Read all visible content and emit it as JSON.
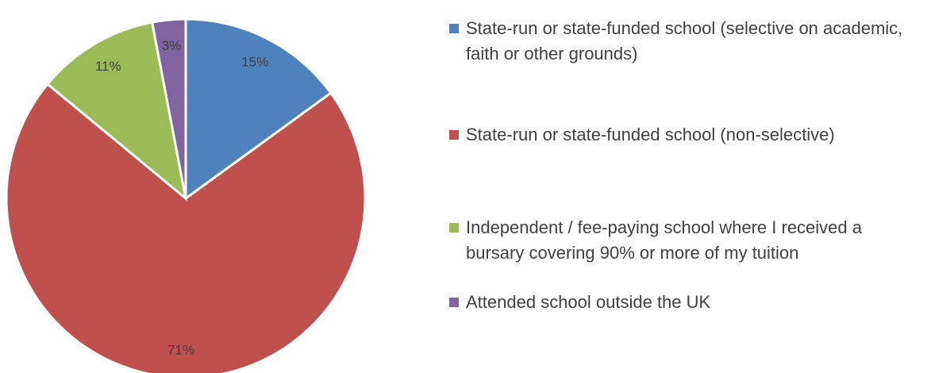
{
  "chart_data": {
    "type": "pie",
    "categories": [
      "State-run or state-funded school (selective on academic, faith or other grounds)",
      "State-run or state-funded school (non-selective)",
      "Independent / fee-paying school where I received a bursary covering 90% or more of my tuition",
      "Attended school outside the UK"
    ],
    "values": [
      15,
      71,
      11,
      3
    ],
    "value_labels": [
      "15%",
      "71%",
      "11%",
      "3%"
    ],
    "colors": [
      "#4f81bd",
      "#c0504d",
      "#9bbb59",
      "#8064a2"
    ],
    "legend": "right"
  }
}
